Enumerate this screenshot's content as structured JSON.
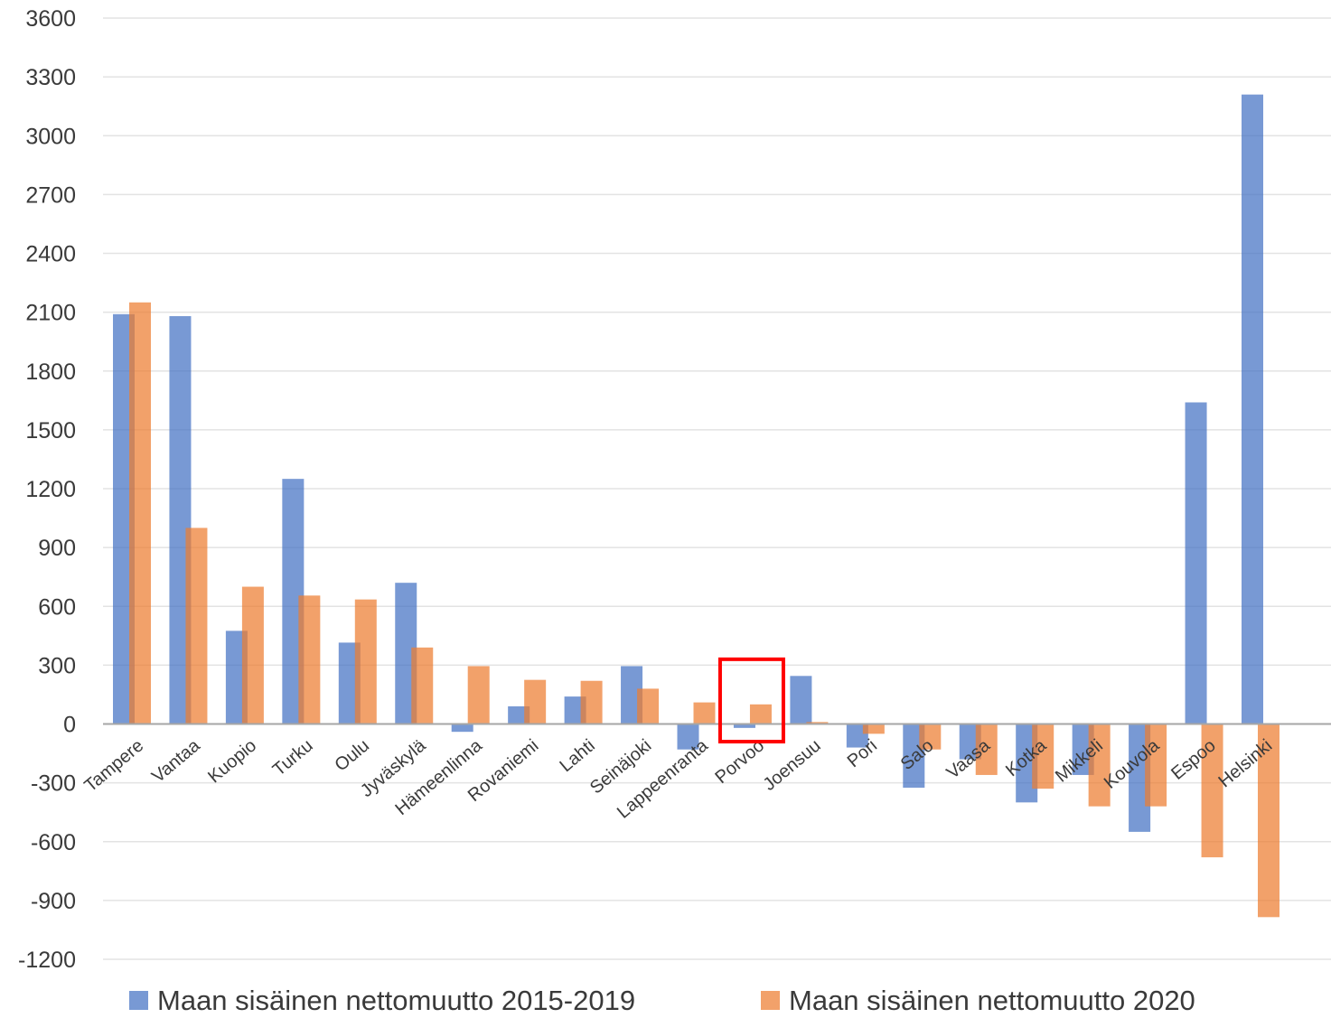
{
  "chart_data": {
    "type": "bar",
    "title": "",
    "xlabel": "",
    "ylabel": "",
    "ylim": [
      -1200,
      3600
    ],
    "yticks": [
      3600,
      3300,
      3000,
      2700,
      2400,
      2100,
      1800,
      1500,
      1200,
      900,
      600,
      300,
      0,
      -300,
      -600,
      -900,
      -1200
    ],
    "grid": true,
    "legend_position": "bottom",
    "categories": [
      "Tampere",
      "Vantaa",
      "Kuopio",
      "Turku",
      "Oulu",
      "Jyväskylä",
      "Hämeenlinna",
      "Rovaniemi",
      "Lahti",
      "Seinäjoki",
      "Lappeenranta",
      "Porvoo",
      "Joensuu",
      "Pori",
      "Salo",
      "Vaasa",
      "Kotka",
      "Mikkeli",
      "Kouvola",
      "Espoo",
      "Helsinki"
    ],
    "series": [
      {
        "name": "Maan sisäinen nettomuutto 2015-2019",
        "color": "#4472c4",
        "values": [
          2090,
          2080,
          475,
          1250,
          415,
          720,
          -40,
          90,
          140,
          295,
          -130,
          -20,
          245,
          -120,
          -325,
          -180,
          -400,
          -260,
          -550,
          1640,
          3210
        ]
      },
      {
        "name": "Maan sisäinen nettomuutto 2020",
        "color": "#ed7d31",
        "values": [
          2150,
          1000,
          700,
          655,
          635,
          390,
          295,
          225,
          220,
          180,
          110,
          100,
          10,
          -50,
          -130,
          -260,
          -330,
          -420,
          -420,
          -680,
          -985
        ]
      }
    ],
    "highlight": {
      "category": "Porvoo",
      "color": "#ff0000"
    }
  }
}
